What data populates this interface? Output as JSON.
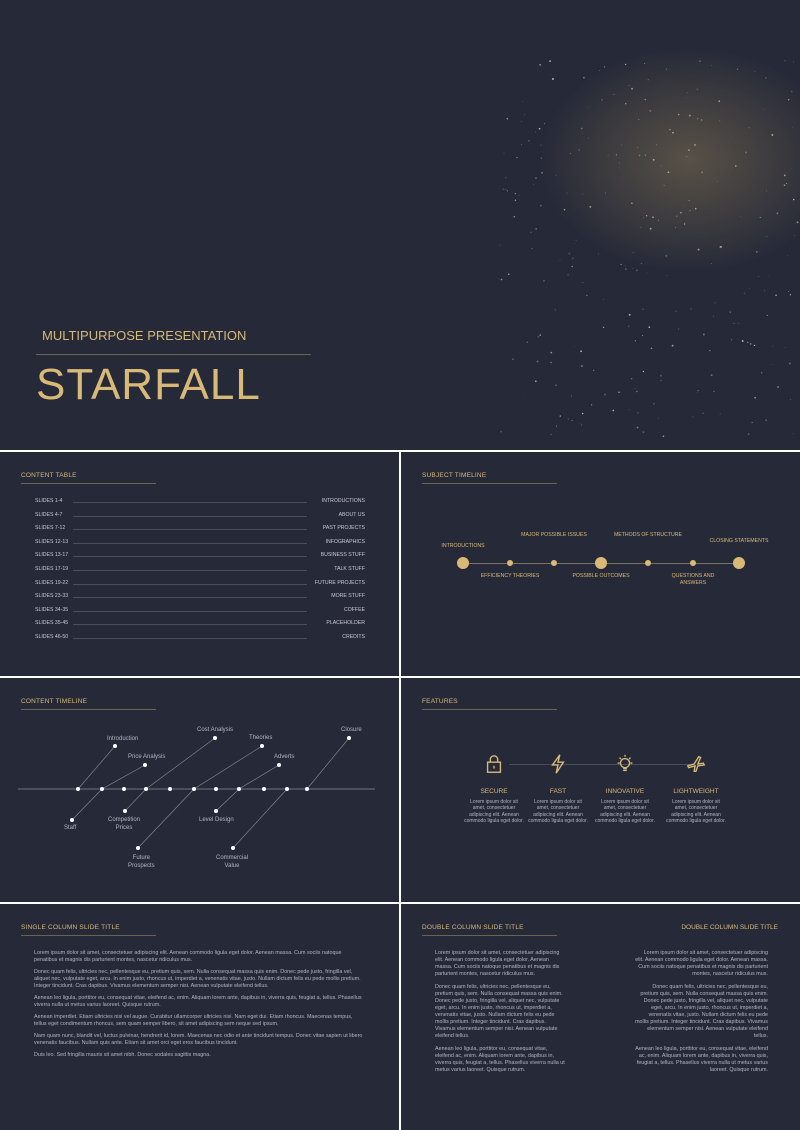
{
  "cover": {
    "subtitle": "MULTIPURPOSE PRESENTATION",
    "title_part1": "STAR",
    "title_part2": "FALL"
  },
  "content_table": {
    "title": "CONTENT TABLE",
    "rows": [
      {
        "slides": "SLIDES 1-4",
        "topic": "INTRODUCTIONS"
      },
      {
        "slides": "SLIDES 4-7",
        "topic": "ABOUT US"
      },
      {
        "slides": "SLIDES 7-12",
        "topic": "PAST PROJECTS"
      },
      {
        "slides": "SLIDES 12-13",
        "topic": "INFOGRAPHICS"
      },
      {
        "slides": "SLIDES 13-17",
        "topic": "BUSINESS STUFF"
      },
      {
        "slides": "SLIDES 17-19",
        "topic": "TALK STUFF"
      },
      {
        "slides": "SLIDES 19-22",
        "topic": "FUTURE PROJECTS"
      },
      {
        "slides": "SLIDES 23-33",
        "topic": "MORE STUFF"
      },
      {
        "slides": "SLIDES 34-35",
        "topic": "COFFEE"
      },
      {
        "slides": "SLIDES 35-45",
        "topic": "PLACEHOLDER"
      },
      {
        "slides": "SLIDES 46-50",
        "topic": "CREDITS"
      }
    ]
  },
  "subject_timeline": {
    "title": "SUBJECT TIMELINE",
    "items": [
      {
        "label": "INTRODUCTIONS"
      },
      {
        "label": "EFFICIENCY THEORIES"
      },
      {
        "label": "MAJOR POSSIBLE ISSUES"
      },
      {
        "label": "POSSIBLE OUTCOMES"
      },
      {
        "label": "METHODS OF STRUCTURE"
      },
      {
        "label": "QUESTIONS AND ANSWERS"
      },
      {
        "label": "CLOSING STATEMENTS"
      }
    ]
  },
  "content_timeline": {
    "title": "CONTENT TIMELINE",
    "labels": {
      "introduction": "Introduction",
      "price_analysis": "Price Analysis",
      "cost_analysis": "Cost Analysis",
      "theories": "Theories",
      "adverts": "Adverts",
      "closure": "Closure",
      "staff": "Staff",
      "competition_prices_1": "Competition",
      "competition_prices_2": "Prices",
      "level_design": "Level Design",
      "future_prospects_1": "Future",
      "future_prospects_2": "Prospects",
      "commercial_value_1": "Commercial",
      "commercial_value_2": "Value"
    }
  },
  "features": {
    "title": "FEATURES",
    "items": [
      {
        "name": "SECURE",
        "icon": "lock-icon",
        "desc": "Lorem ipsum dolor sit amet, consectetuer adipiscing elit. Aenean commodo ligula eget dolor."
      },
      {
        "name": "FAST",
        "icon": "lightning-icon",
        "desc": "Lorem ipsum dolor sit amet, consectetuer adipiscing elit. Aenean commodo ligula eget dolor."
      },
      {
        "name": "INNOVATIVE",
        "icon": "lightbulb-icon",
        "desc": "Lorem ipsum dolor sit amet, consectetuer adipiscing elit. Aenean commodo ligula eget dolor."
      },
      {
        "name": "LIGHTWEIGHT",
        "icon": "airplane-icon",
        "desc": "Lorem ipsum dolor sit amet, consectetuer adipiscing elit. Aenean commodo ligula eget dolor."
      }
    ]
  },
  "single_column": {
    "title": "SINGLE COLUMN SLIDE TITLE",
    "paragraphs": [
      "Lorem ipsum dolor sit amet, consectetuer adipiscing elit. Aenean commodo ligula eget dolor. Aenean massa. Cum sociis natoque penatibus et magnis dis parturient montes, nascetur ridiculus mus.",
      "Donec quam felis, ultricies nec, pellentesque eu, pretium quis, sem. Nulla consequat massa quis enim. Donec pede justo, fringilla vel, aliquet nec, vulputate eget, arcu. In enim justo, rhoncus ut, imperdiet a, venenatis vitae, justo. Nullam dictum felis eu pede mollis pretium. Integer tincidunt. Cras dapibus. Vivamus elementum semper nisi. Aenean vulputate eleifend tellus.",
      "Aenean leo ligula, porttitor eu, consequat vitae, eleifend ac, enim. Aliquam lorem ante, dapibus in, viverra quis, feugiat a, tellus. Phasellus viverra nulla ut metus varius laoreet. Quisque rutrum.",
      "Aenean imperdiet. Etiam ultricies nisi vel augue. Curabitur ullamcorper ultricies nisi. Nam eget dui. Etiam rhoncus. Maecenas tempus, tellus eget condimentum rhoncus, sem quam semper libero, sit amet adipiscing sem neque sed ipsum.",
      "Nam quam nunc, blandit vel, luctus pulvinar, hendrerit id, lorem. Maecenas nec odio et ante tincidunt tempus. Donec vitae sapien ut libero venenatis faucibus. Nullam quis ante. Etiam sit amet orci eget eros faucibus tincidunt.",
      "Duis leo. Sed fringilla mauris sit amet nibh. Donec sodales sagittis magna."
    ]
  },
  "double_column": {
    "title_left": "DOUBLE COLUMN SLIDE TITLE",
    "title_right": "DOUBLE COLUMN SLIDE TITLE",
    "left_paragraphs": [
      "Lorem ipsum dolor sit amet, consectetuer adipiscing elit. Aenean commodo ligula eget dolor. Aenean massa. Cum sociis natoque penatibus et magnis dis parturient montes, nascetur ridiculus mus.",
      "Donec quam felis, ultricies nec, pellentesque eu, pretium quis, sem. Nulla consequat massa quis enim. Donec pede justo, fringilla vel, aliquet nec, vulputate eget, arcu. In enim justo, rhoncus ut, imperdiet a, venenatis vitae, justo. Nullam dictum felis eu pede mollis pretium. Integer tincidunt. Cras dapibus. Vivamus elementum semper nisi. Aenean vulputate eleifend tellus.",
      "Aenean leo ligula, porttitor eu, consequat vitae, eleifend ac, enim. Aliquam lorem ante, dapibus in, viverra quis, feugiat a, tellus. Phasellus viverra nulla ut metus varius laoreet. Quisque rutrum."
    ],
    "right_paragraphs": [
      "Lorem ipsum dolor sit amet, consectetuer adipiscing elit. Aenean commodo ligula eget dolor. Aenean massa. Cum sociis natoque penatibus et magnis dis parturient montes, nascetur ridiculus mus.",
      "Donec quam felis, ultricies nec, pellentesque eu, pretium quis, sem. Nulla consequat massa quis enim. Donec pede justo, fringilla vel, aliquet nec, vulputate eget, arcu. In enim justo, rhoncus ut, imperdiet a, venenatis vitae, justo. Nullam dictum felis eu pede mollis pretium. Integer tincidunt. Cras dapibus. Vivamus elementum semper nisi. Aenean vulputate eleifend tellus.",
      "Aenean leo ligula, porttitor eu, consequat vitae, eleifend ac, enim. Aliquam lorem ante, dapibus in, viverra quis, feugiat a, tellus. Phasellus viverra nulla ut metus varius laoreet. Quisque rutrum."
    ]
  },
  "colors": {
    "background": "#262a38",
    "accent": "#d9b978",
    "text": "#b3b6c0"
  }
}
